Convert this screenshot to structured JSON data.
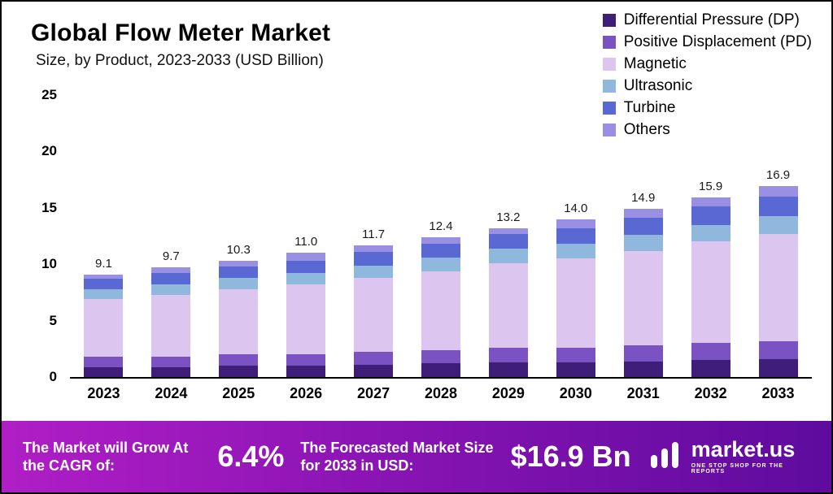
{
  "header": {
    "title": "Global Flow Meter Market",
    "subtitle": "Size, by Product, 2023-2033 (USD Billion)"
  },
  "chart_data": {
    "type": "bar",
    "stacked": true,
    "title": "Global Flow Meter Market Size, by Product, 2023-2033 (USD Billion)",
    "xlabel": "",
    "ylabel": "USD Billion",
    "ylim": [
      0,
      25
    ],
    "yticks": [
      0,
      5,
      10,
      15,
      20,
      25
    ],
    "grid": false,
    "legend_position": "top-right",
    "categories": [
      "2023",
      "2024",
      "2025",
      "2026",
      "2027",
      "2028",
      "2029",
      "2030",
      "2031",
      "2032",
      "2033"
    ],
    "totals": [
      "9.1",
      "9.7",
      "10.3",
      "11.0",
      "11.7",
      "12.4",
      "13.2",
      "14.0",
      "14.9",
      "15.9",
      "16.9"
    ],
    "series": [
      {
        "name": "Differential Pressure (DP)",
        "color": "#3e1e78",
        "values": [
          0.9,
          0.9,
          1.0,
          1.0,
          1.1,
          1.2,
          1.3,
          1.3,
          1.4,
          1.5,
          1.6
        ]
      },
      {
        "name": "Positive Displacement (PD)",
        "color": "#7b52c1",
        "values": [
          0.9,
          0.9,
          1.0,
          1.0,
          1.1,
          1.2,
          1.3,
          1.3,
          1.4,
          1.5,
          1.6
        ]
      },
      {
        "name": "Magnetic",
        "color": "#dcc6f0",
        "values": [
          5.1,
          5.5,
          5.8,
          6.2,
          6.6,
          7.0,
          7.5,
          7.9,
          8.4,
          9.0,
          9.5
        ]
      },
      {
        "name": "Ultrasonic",
        "color": "#8fb8dc",
        "values": [
          0.9,
          0.9,
          1.0,
          1.0,
          1.1,
          1.2,
          1.3,
          1.3,
          1.4,
          1.5,
          1.6
        ]
      },
      {
        "name": "Turbine",
        "color": "#5a68d4",
        "values": [
          0.9,
          1.0,
          1.0,
          1.1,
          1.2,
          1.2,
          1.3,
          1.4,
          1.5,
          1.6,
          1.7
        ]
      },
      {
        "name": "Others",
        "color": "#998fe3",
        "values": [
          0.4,
          0.5,
          0.5,
          0.7,
          0.6,
          0.6,
          0.5,
          0.8,
          0.8,
          0.8,
          0.9
        ]
      }
    ]
  },
  "footer": {
    "left_label": "The Market will Grow At the CAGR of:",
    "cagr_value": "6.4%",
    "mid_label": "The Forecasted Market Size for 2033 in USD:",
    "forecast_value": "$16.9 Bn",
    "brand": "market.us",
    "brand_tagline": "ONE STOP SHOP FOR THE REPORTS"
  }
}
